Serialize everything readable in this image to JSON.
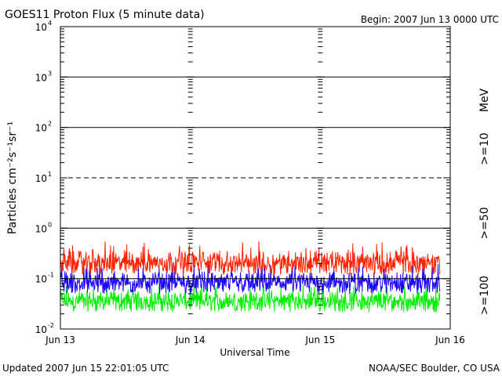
{
  "header": {
    "title": "GOES11 Proton Flux (5 minute data)",
    "begin": "Begin: 2007 Jun 13 0000 UTC"
  },
  "footer": {
    "updated": "Updated 2007 Jun 15 22:01:05 UTC",
    "credit": "NOAA/SEC Boulder, CO USA"
  },
  "colors": {
    "ge10": "#ff2200",
    "ge50": "#1a00ff",
    "ge100": "#00ee00",
    "axis": "#000000"
  },
  "side_labels": {
    "unit": "MeV",
    "ge10": ">=10",
    "ge50": ">=50",
    "ge100": ">=100"
  },
  "chart_data": {
    "type": "line",
    "title": "GOES11 Proton Flux (5 minute data)",
    "xlabel": "Universal Time",
    "ylabel": "Particles cm⁻²s⁻¹sr⁻¹",
    "y_scale": "log",
    "ylim": [
      0.01,
      10000
    ],
    "y_ticks": [
      {
        "base": "10",
        "exp": "4",
        "value": 10000
      },
      {
        "base": "10",
        "exp": "3",
        "value": 1000
      },
      {
        "base": "10",
        "exp": "2",
        "value": 100
      },
      {
        "base": "10",
        "exp": "1",
        "value": 10
      },
      {
        "base": "10",
        "exp": "0",
        "value": 1
      },
      {
        "base": "10",
        "exp": "-1",
        "value": 0.1
      },
      {
        "base": "10",
        "exp": "-2",
        "value": 0.01
      }
    ],
    "x_ticks": [
      "Jun 13",
      "Jun 14",
      "Jun 15",
      "Jun 16"
    ],
    "xlim_days": [
      0,
      3
    ],
    "data_end_day": 2.92,
    "reference_lines": [
      {
        "value": 1000,
        "style": "solid"
      },
      {
        "value": 100,
        "style": "solid"
      },
      {
        "value": 10,
        "style": "dashed"
      },
      {
        "value": 1,
        "style": "solid"
      },
      {
        "value": 0.1,
        "style": "solid"
      }
    ],
    "series": [
      {
        "name": ">=10",
        "color": "#ff2200",
        "min": 0.12,
        "max": 0.55,
        "typical": 0.2
      },
      {
        "name": ">=50",
        "color": "#1a00ff",
        "min": 0.05,
        "max": 0.2,
        "typical": 0.08
      },
      {
        "name": ">=100",
        "color": "#00ee00",
        "min": 0.022,
        "max": 0.08,
        "typical": 0.035
      }
    ],
    "grid": false
  }
}
